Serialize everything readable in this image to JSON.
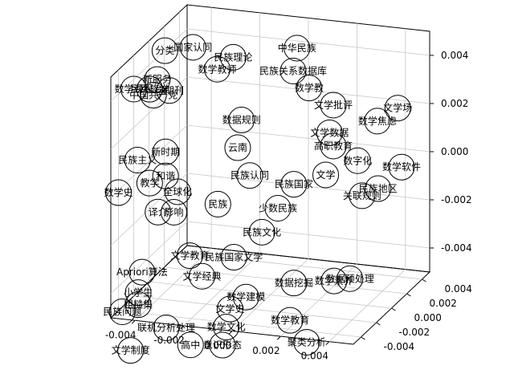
{
  "chart_data": {
    "type": "scatter",
    "projection": "3d",
    "title": "",
    "xlabel": "",
    "ylabel": "",
    "zlabel": "",
    "xlim": [
      -0.005,
      0.005
    ],
    "ylim": [
      -0.005,
      0.005
    ],
    "zlim": [
      -0.005,
      0.005
    ],
    "x_ticks": [
      -0.004,
      -0.002,
      0.0,
      0.002,
      0.004
    ],
    "x_tick_labels": [
      "-0.004",
      "-0.002",
      "0.000",
      "0.002",
      "0.004"
    ],
    "y_ticks": [
      -0.004,
      -0.002,
      0.0,
      0.002,
      0.004
    ],
    "y_tick_labels": [
      "-0.004",
      "-0.002",
      "0.000",
      "0.002",
      "0.004"
    ],
    "z_ticks": [
      -0.004,
      -0.002,
      0.0,
      0.002,
      0.004
    ],
    "z_tick_labels": [
      "-0.004",
      "-0.002",
      "0.000",
      "0.002",
      "0.004"
    ],
    "points": [
      {
        "label": "分类",
        "x": -0.0045,
        "y": 0.0005,
        "z": 0.0045
      },
      {
        "label": "国家认同",
        "x": -0.0035,
        "y": 0.001,
        "z": 0.0046
      },
      {
        "label": "民族理论",
        "x": -0.002,
        "y": 0.0015,
        "z": 0.0042
      },
      {
        "label": "数学教师",
        "x": -0.0025,
        "y": 0.001,
        "z": 0.0038
      },
      {
        "label": "中华民族",
        "x": 0.0,
        "y": 0.0035,
        "z": 0.0042
      },
      {
        "label": "民族关系数据库",
        "x": 0.0,
        "y": 0.003,
        "z": 0.0034
      },
      {
        "label": "数学教",
        "x": 0.0005,
        "y": 0.0035,
        "z": 0.0026
      },
      {
        "label": "新服务",
        "x": -0.0045,
        "y": -0.0005,
        "z": 0.0036
      },
      {
        "label": "数学课程",
        "x": -0.005,
        "y": -0.002,
        "z": 0.0036
      },
      {
        "label": "民民族学",
        "x": -0.0045,
        "y": -0.0015,
        "z": 0.0035
      },
      {
        "label": "中国共产党",
        "x": -0.0045,
        "y": -0.001,
        "z": 0.0031
      },
      {
        "label": "学期刊",
        "x": -0.004,
        "y": -0.0005,
        "z": 0.0032
      },
      {
        "label": "文学批评",
        "x": 0.0015,
        "y": 0.0035,
        "z": 0.002
      },
      {
        "label": "文学场",
        "x": 0.004,
        "y": 0.004,
        "z": 0.002
      },
      {
        "label": "数学焦虑",
        "x": 0.003,
        "y": 0.0045,
        "z": 0.0012
      },
      {
        "label": "数据规则",
        "x": -0.0015,
        "y": 0.001,
        "z": 0.0018
      },
      {
        "label": "文学数据",
        "x": 0.0015,
        "y": 0.003,
        "z": 0.001
      },
      {
        "label": "高职教育",
        "x": 0.0015,
        "y": 0.0035,
        "z": 0.0003
      },
      {
        "label": "新时期",
        "x": -0.004,
        "y": -0.001,
        "z": 0.0008
      },
      {
        "label": "云南",
        "x": -0.0015,
        "y": 0.0005,
        "z": 0.0008
      },
      {
        "label": "民族主义",
        "x": -0.005,
        "y": -0.0015,
        "z": 0.0005
      },
      {
        "label": "数学史",
        "x": -0.005,
        "y": -0.004,
        "z": -0.0001
      },
      {
        "label": "数学软件",
        "x": 0.004,
        "y": 0.0045,
        "z": -0.0006
      },
      {
        "label": "数字化",
        "x": 0.0025,
        "y": 0.0035,
        "z": -0.0002
      },
      {
        "label": "民族地区",
        "x": 0.0035,
        "y": 0.003,
        "z": -0.0011
      },
      {
        "label": "关联规则",
        "x": 0.003,
        "y": 0.0025,
        "z": -0.0013
      },
      {
        "label": "教学",
        "x": -0.0045,
        "y": -0.0015,
        "z": -0.0004
      },
      {
        "label": "和谐",
        "x": -0.004,
        "y": -0.001,
        "z": -0.0002
      },
      {
        "label": "全球化",
        "x": -0.0035,
        "y": -0.001,
        "z": -0.0008
      },
      {
        "label": "民族认同",
        "x": -0.001,
        "y": 0.0005,
        "z": -0.0003
      },
      {
        "label": "民族国家",
        "x": 0.0005,
        "y": 0.0015,
        "z": -0.0008
      },
      {
        "label": "文学",
        "x": 0.0015,
        "y": 0.0025,
        "z": -0.0006
      },
      {
        "label": "译介",
        "x": -0.004,
        "y": -0.002,
        "z": -0.0014
      },
      {
        "label": "影响",
        "x": -0.0035,
        "y": -0.0015,
        "z": -0.0015
      },
      {
        "label": "民族",
        "x": -0.002,
        "y": -0.0005,
        "z": -0.0013
      },
      {
        "label": "少数民族",
        "x": 0.0,
        "y": 0.001,
        "z": -0.0017
      },
      {
        "label": "民族文化",
        "x": -0.0005,
        "y": 0.0005,
        "z": -0.0026
      },
      {
        "label": "文学教育",
        "x": -0.003,
        "y": -0.001,
        "z": -0.0034
      },
      {
        "label": "民族国家文学",
        "x": -0.0015,
        "y": 0.0,
        "z": -0.0036
      },
      {
        "label": "Apriori算法",
        "x": -0.0045,
        "y": -0.0025,
        "z": -0.0038
      },
      {
        "label": "小学生",
        "x": -0.0045,
        "y": -0.003,
        "z": -0.0045
      },
      {
        "label": "粗糙集",
        "x": -0.0045,
        "y": -0.003,
        "z": -0.005
      },
      {
        "label": "数学素养",
        "x": 0.002,
        "y": 0.002,
        "z": -0.0048
      },
      {
        "label": "文学经典",
        "x": -0.0025,
        "y": -0.001,
        "z": -0.0042
      },
      {
        "label": "数学建模",
        "x": -0.001,
        "y": 0.0,
        "z": -0.0052
      },
      {
        "label": "数据挖掘",
        "x": 0.0005,
        "y": 0.0015,
        "z": -0.0049
      },
      {
        "label": "数据预处理",
        "x": 0.0025,
        "y": 0.0025,
        "z": -0.0048
      },
      {
        "label": "民族问题",
        "x": -0.005,
        "y": -0.0035,
        "z": -0.0052
      },
      {
        "label": "文学史",
        "x": -0.0015,
        "y": -0.0005,
        "z": -0.0056
      },
      {
        "label": "联机分析处理",
        "x": -0.0035,
        "y": -0.0025,
        "z": -0.006
      },
      {
        "label": "数学文化",
        "x": -0.0015,
        "y": -0.001,
        "z": -0.0062
      },
      {
        "label": "数学教育",
        "x": 0.0005,
        "y": 0.001,
        "z": -0.0063
      },
      {
        "label": "高中",
        "x": -0.0025,
        "y": -0.0025,
        "z": -0.0066
      },
      {
        "label": "意识形态",
        "x": -0.0015,
        "y": -0.0015,
        "z": -0.0068
      },
      {
        "label": "聚类分析",
        "x": 0.0015,
        "y": 0.0,
        "z": -0.0068
      },
      {
        "label": "文学制度",
        "x": -0.0045,
        "y": -0.004,
        "z": -0.0066
      }
    ]
  }
}
